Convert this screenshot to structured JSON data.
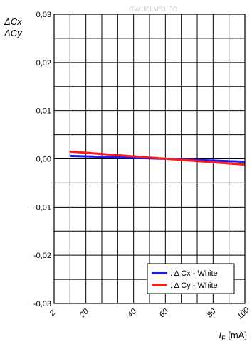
{
  "chart_data": {
    "type": "line",
    "watermark": "GW JCLMS1.EC",
    "ylabel_lines": [
      "ΔCx",
      "ΔCy"
    ],
    "xlabel": {
      "symbol": "I",
      "subscript": "F",
      "unit": "[mA]"
    },
    "x_ticks": [
      "2",
      "20",
      "40",
      "60",
      "80",
      "100"
    ],
    "y_ticks": [
      "0,03",
      "0,02",
      "0,01",
      "0,00",
      "-0,01",
      "-0,02",
      "-0,03"
    ],
    "xlim": [
      2,
      100
    ],
    "ylim": [
      -0.03,
      0.03
    ],
    "grid": true,
    "legend_position": "bottom-right",
    "series": [
      {
        "name": ": Δ Cx - White",
        "color": "#1a1aff",
        "x": [
          10,
          60,
          100
        ],
        "y": [
          0.0006,
          0.0,
          -0.0006
        ]
      },
      {
        "name": ": Δ Cy - White",
        "color": "#ff1a1a",
        "x": [
          10,
          60,
          100
        ],
        "y": [
          0.0015,
          0.0,
          -0.0012
        ]
      }
    ]
  }
}
